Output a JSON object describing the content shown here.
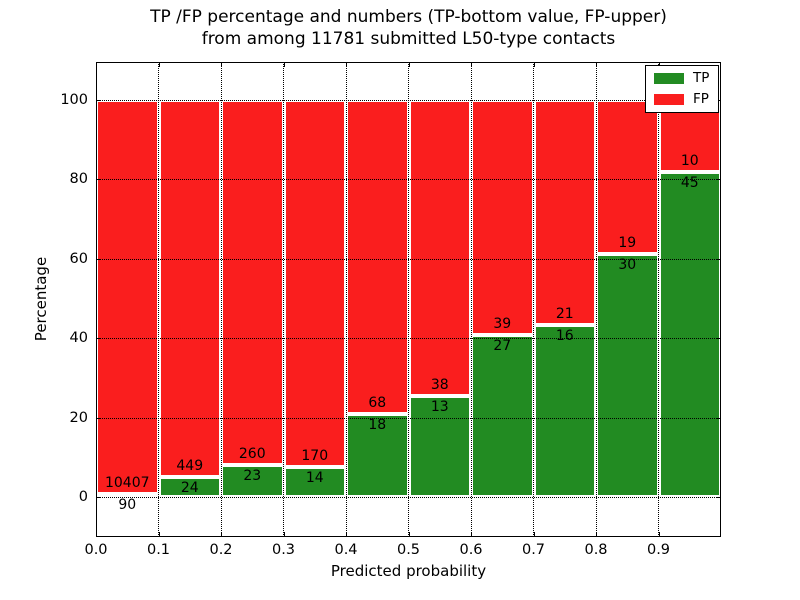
{
  "figure": {
    "title_line1": "TP /FP percentage and numbers (TP-bottom value, FP-upper)",
    "title_line2": "from among 11781 submitted L50-type contacts"
  },
  "chart_data": {
    "type": "bar",
    "stacked": true,
    "title": "TP /FP percentage and numbers (TP-bottom value, FP-upper) from among 11781 submitted L50-type contacts",
    "xlabel": "Predicted probability",
    "ylabel": "Percentage",
    "total_submitted": 11781,
    "x_tick_labels": [
      "0.0",
      "0.1",
      "0.2",
      "0.3",
      "0.4",
      "0.5",
      "0.6",
      "0.7",
      "0.8",
      "0.9"
    ],
    "y_tick_values": [
      0,
      20,
      40,
      60,
      80,
      100
    ],
    "y_tick_labels": [
      "0",
      "20",
      "40",
      "60",
      "80",
      "100"
    ],
    "xlim": [
      0.0,
      1.0
    ],
    "ylim": [
      -10,
      110
    ],
    "bin_width": 0.1,
    "bins_start": [
      0.0,
      0.1,
      0.2,
      0.3,
      0.4,
      0.5,
      0.6,
      0.7,
      0.8,
      0.9
    ],
    "grid": "dotted black, both axes, drawn above bars",
    "legend_position": "upper right",
    "bar_edge_color": "#ffffff",
    "series": [
      {
        "name": "TP",
        "color": "#228b22",
        "counts": [
          90,
          24,
          23,
          14,
          18,
          13,
          27,
          16,
          30,
          45
        ],
        "pct_of_bin": [
          0.86,
          5.07,
          8.13,
          7.61,
          20.93,
          25.49,
          40.91,
          43.24,
          61.22,
          81.82
        ]
      },
      {
        "name": "FP",
        "color": "#fa1e1e",
        "counts": [
          10407,
          449,
          260,
          170,
          68,
          38,
          39,
          21,
          19,
          10
        ],
        "pct_of_bin": [
          99.14,
          94.93,
          91.87,
          92.39,
          79.07,
          74.51,
          59.09,
          56.76,
          38.78,
          18.18
        ]
      }
    ],
    "label_note": "TP count printed below segment boundary, FP count printed above it"
  }
}
